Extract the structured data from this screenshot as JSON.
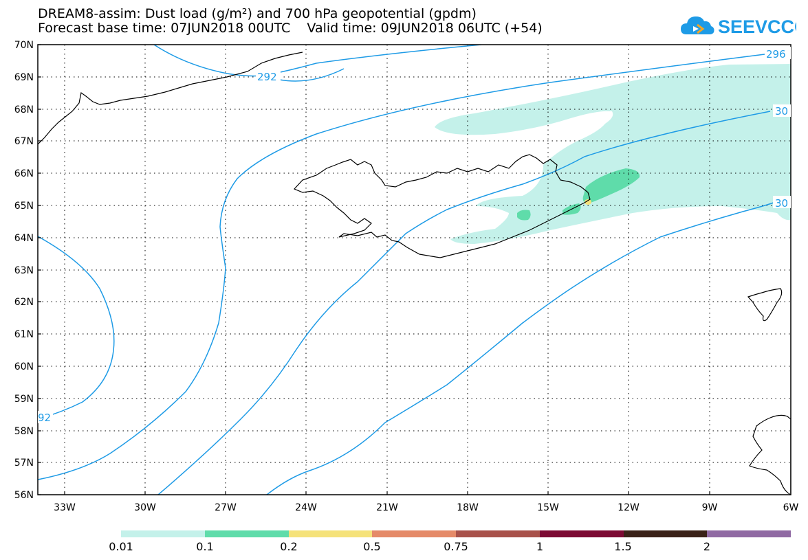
{
  "header": {
    "title_line1": "DREAM8-assim: Dust load (g/m²) and 700 hPa geopotential (gpdm)",
    "title_line2": "Forecast base time: 07JUN2018 00UTC    Valid time: 09JUN2018 06UTC (+54)",
    "logo_text": "SEEVCCC"
  },
  "map": {
    "lat_labels": [
      "70N",
      "69N",
      "68N",
      "67N",
      "66N",
      "65N",
      "64N",
      "63N",
      "62N",
      "61N",
      "60N",
      "59N",
      "58N",
      "57N",
      "56N"
    ],
    "lon_labels": [
      "33W",
      "30W",
      "27W",
      "24W",
      "21W",
      "18W",
      "15W",
      "12W",
      "9W",
      "6W"
    ],
    "contour_labels": [
      "292",
      "296",
      "30",
      "30",
      "92"
    ],
    "colors": {
      "contour": "#1e9be6",
      "dust_low": "#c4f1ea",
      "dust_mid": "#5fdcaa",
      "dust_high": "#f5e27a",
      "coast": "#000000"
    }
  },
  "colorbar": {
    "colors": [
      "#c4f1ea",
      "#5fdcaa",
      "#f5e27a",
      "#e58a68",
      "#a8514a",
      "#7c0a33",
      "#3a2218",
      "#906aa3"
    ],
    "labels": [
      "0.01",
      "0.1",
      "0.2",
      "0.5",
      "0.75",
      "1",
      "1.5",
      "2"
    ]
  }
}
